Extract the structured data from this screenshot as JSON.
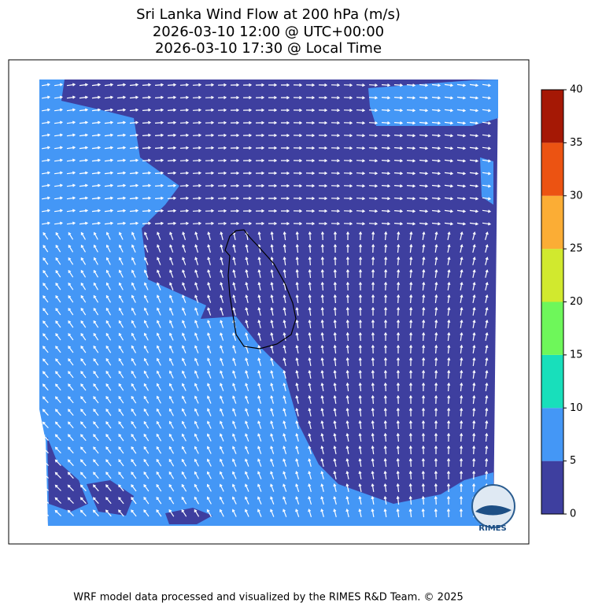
{
  "title": [
    "Sri Lanka Wind Flow at 200 hPa (m/s)",
    "2026-03-10 12:00 @ UTC+00:00",
    "2026-03-10 17:30 @ Local Time"
  ],
  "colorbar": {
    "lim": [
      0,
      40
    ],
    "ticks": [
      0,
      5,
      10,
      15,
      20,
      25,
      30,
      35,
      40
    ],
    "colors": [
      "#3e3f9f",
      "#4497f6",
      "#18dfbb",
      "#6ef75a",
      "#d1e92e",
      "#fbad35",
      "#ec5312",
      "#a51805"
    ]
  },
  "logo": "RIMES",
  "footer": "WRF model data processed and visualized by the RIMES R&D Team. © 2025"
}
